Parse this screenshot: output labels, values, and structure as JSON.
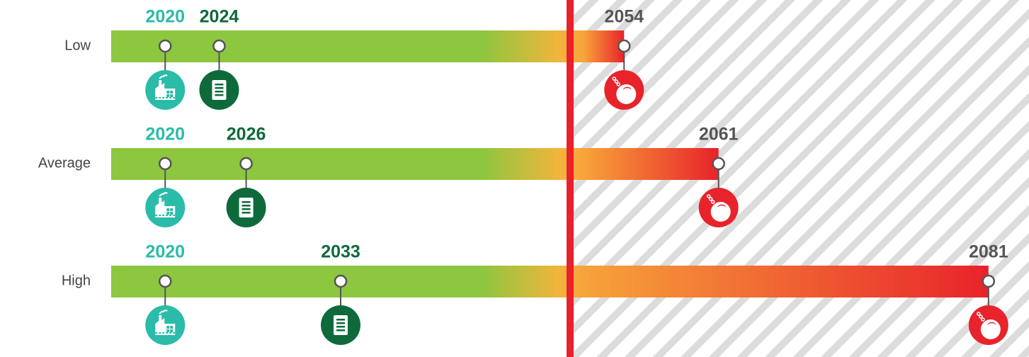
{
  "chart_data": {
    "type": "timeline",
    "categories": [
      "Low",
      "Average",
      "High"
    ],
    "start": [
      2020,
      2020,
      2020
    ],
    "mid": [
      2024,
      2026,
      2033
    ],
    "end": [
      2054,
      2061,
      2081
    ],
    "reference_line": 2050,
    "xlim": [
      2016,
      2084
    ],
    "colors": {
      "start": "#2bbba9",
      "mid": "#0e6a3b",
      "end": "#e8232b",
      "end_label": "#555555",
      "reference": "#e8212a",
      "bar_green": "#8dc63f",
      "bar_yellow": "#f2b53c",
      "bar_orange": "#f7a33a"
    }
  }
}
